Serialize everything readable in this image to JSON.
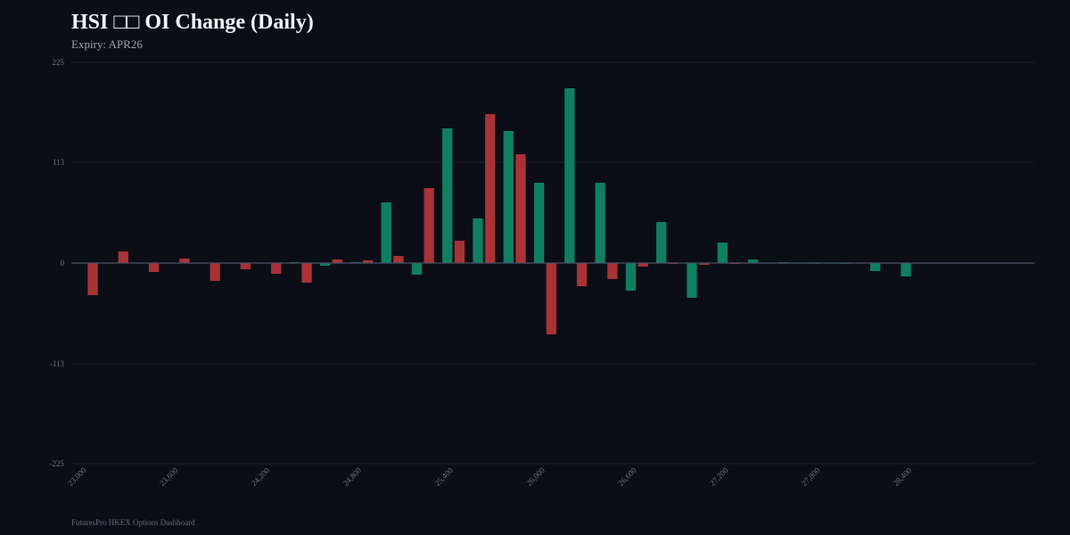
{
  "header": {
    "title": "HSI □□ OI Change (Daily)",
    "subtitle": "Expiry: APR26"
  },
  "footer": {
    "text": "FuturesPro HKEX Options Dashboard"
  },
  "colors": {
    "background": "#0b0e16",
    "grid": "#1a2030",
    "zero_line": "#4a5266",
    "tick_label": "#6b7488",
    "positive": "#0f7f5f",
    "negative": "#a83236"
  },
  "chart_data": {
    "type": "bar",
    "title": "HSI □□ OI Change (Daily)",
    "subtitle": "Expiry: APR26",
    "xlabel": "",
    "ylabel": "",
    "ylim": [
      -225,
      225
    ],
    "yticks": [
      225,
      113,
      0,
      -113,
      -225
    ],
    "ytick_labels": [
      "225",
      "113",
      "0",
      "-113",
      "-225"
    ],
    "x_range": [
      22900,
      29200
    ],
    "xticks": [
      23000,
      23600,
      24200,
      24800,
      25400,
      26000,
      26600,
      27200,
      27800,
      28400
    ],
    "xtick_labels": [
      "23,000",
      "23,600",
      "24,200",
      "24,800",
      "25,400",
      "26,000",
      "26,600",
      "27,200",
      "27,800",
      "28,400"
    ],
    "grid": true,
    "legend": "none",
    "bar_width_strike": 66,
    "series": [
      {
        "color_key": "negative",
        "offset": 40,
        "x": [
          23000,
          23200,
          23400,
          23600,
          23800,
          24000,
          24200,
          24400,
          24600,
          24800,
          25000,
          25200,
          25400,
          25600,
          25800,
          26000,
          26200,
          26400,
          26600,
          26800,
          27000,
          27200
        ],
        "values": [
          -36,
          13,
          -10,
          5,
          -20,
          -7,
          -12,
          -22,
          4,
          3,
          8,
          84,
          25,
          167,
          122,
          -80,
          -26,
          -18,
          -4,
          -1,
          -2,
          -1
        ]
      },
      {
        "color_key": "positive",
        "offset": -40,
        "x": [
          24400,
          24600,
          24800,
          25000,
          25200,
          25400,
          25600,
          25800,
          26000,
          26200,
          26400,
          26600,
          26800,
          27000,
          27200,
          27400,
          27600,
          27800,
          28000,
          28200,
          28400
        ],
        "values": [
          1,
          -3,
          1,
          68,
          -13,
          151,
          50,
          148,
          90,
          196,
          90,
          -31,
          46,
          -39,
          23,
          4,
          1,
          0,
          0,
          -9,
          -15
        ]
      }
    ]
  }
}
